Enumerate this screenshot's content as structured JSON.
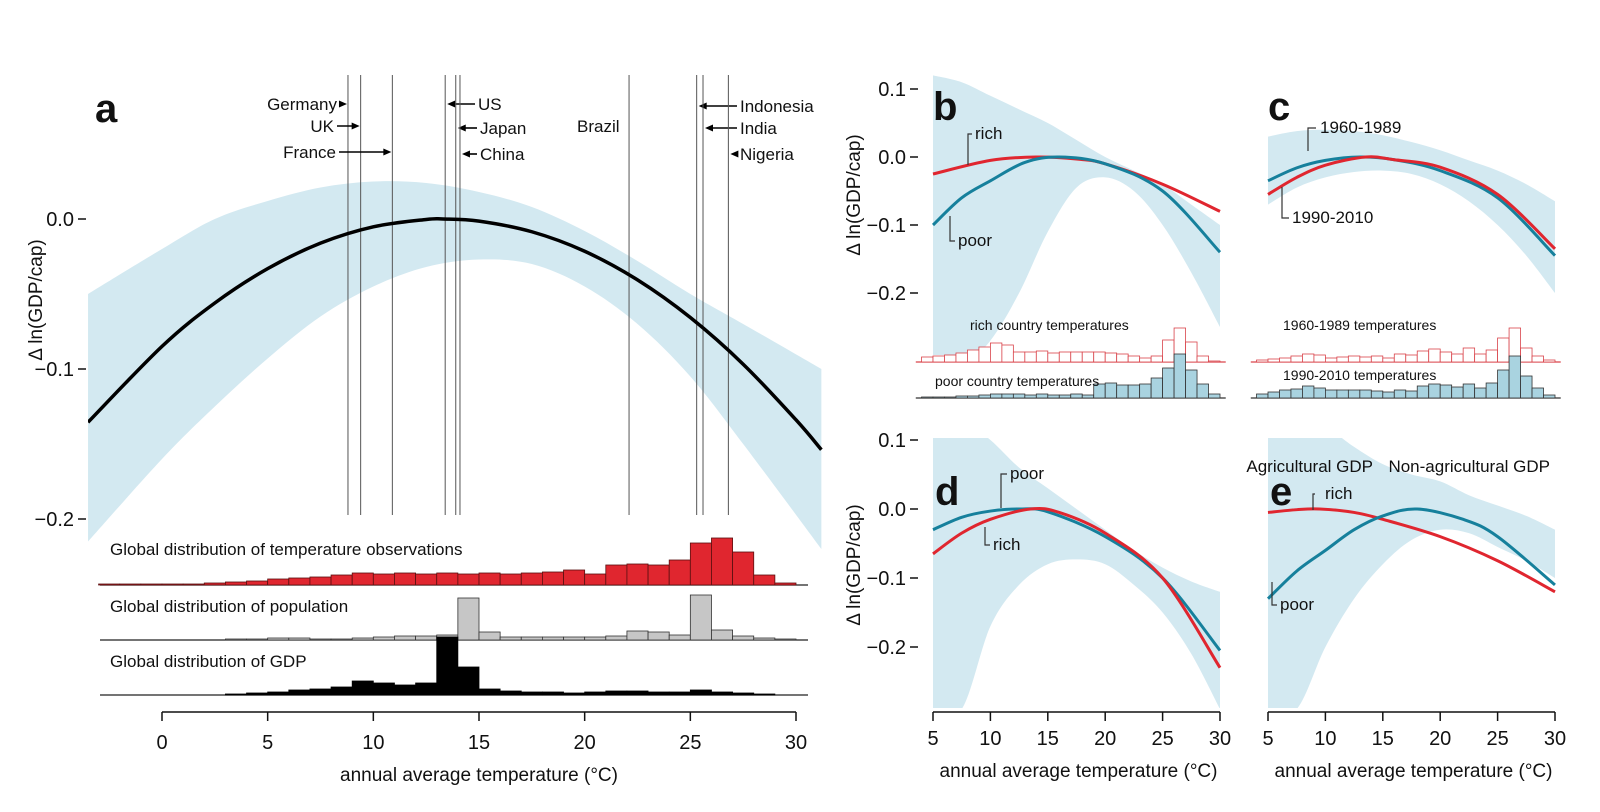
{
  "colors": {
    "band": "#d3e9f1",
    "teal": "#16809c",
    "red": "#e0262f",
    "black": "#000000",
    "gray_hist": "#c6c6c6",
    "teal_hist": "#a9d3e0"
  },
  "chart_data": [
    {
      "panel": "a",
      "type": "line",
      "xlabel": "annual average temperature (°C)",
      "ylabel": "Δ ln(GDP/cap)",
      "xticks": [
        0,
        5,
        10,
        15,
        20,
        25,
        30
      ],
      "xtick_labels": [
        "0",
        "5",
        "10",
        "15",
        "20",
        "25",
        "30"
      ],
      "yticks": [
        0.0,
        -0.1,
        -0.2
      ],
      "ytick_labels": [
        "0.0",
        "−0.1",
        "−0.2"
      ],
      "xlim": [
        -3.5,
        31.2
      ],
      "curve": {
        "x": [
          -3.5,
          0,
          2.5,
          5,
          7.5,
          10,
          12.5,
          13.3,
          15,
          17.5,
          20,
          22.5,
          25,
          27.5,
          30,
          31.2
        ],
        "y": [
          -0.1355,
          -0.0849,
          -0.056,
          -0.0331,
          -0.0161,
          -0.0052,
          -0.0003,
          0,
          -0.0014,
          -0.0085,
          -0.0215,
          -0.0406,
          -0.0657,
          -0.0968,
          -0.1339,
          -0.1538
        ]
      },
      "band": {
        "x": [
          -3.5,
          0,
          2.5,
          5,
          7.5,
          10,
          12.5,
          15,
          17.5,
          20,
          22.5,
          25,
          27.5,
          31.2
        ],
        "upper": [
          -0.05,
          -0.02,
          0.0,
          0.012,
          0.021,
          0.025,
          0.024,
          0.018,
          0.008,
          -0.008,
          -0.028,
          -0.05,
          -0.07,
          -0.1
        ],
        "lower": [
          -0.215,
          -0.16,
          -0.125,
          -0.093,
          -0.065,
          -0.045,
          -0.032,
          -0.027,
          -0.03,
          -0.045,
          -0.07,
          -0.105,
          -0.15,
          -0.22
        ]
      },
      "countries": [
        {
          "name": "Germany",
          "temp": 8.8
        },
        {
          "name": "UK",
          "temp": 9.4
        },
        {
          "name": "France",
          "temp": 10.9
        },
        {
          "name": "US",
          "temp": 13.4
        },
        {
          "name": "Japan",
          "temp": 13.9
        },
        {
          "name": "China",
          "temp": 14.1
        },
        {
          "name": "Brazil",
          "temp": 22.1
        },
        {
          "name": "Indonesia",
          "temp": 25.3
        },
        {
          "name": "India",
          "temp": 25.6
        },
        {
          "name": "Nigeria",
          "temp": 26.8
        }
      ],
      "histograms": [
        {
          "label": "Global distribution of temperature observations",
          "bin_start": -3,
          "bin_width": 1,
          "values": [
            1,
            1,
            1,
            1,
            1,
            2,
            3,
            4,
            6,
            7,
            8,
            10,
            12,
            11,
            12,
            11,
            12,
            11,
            12,
            11,
            12,
            13,
            15,
            11,
            20,
            21,
            20,
            25,
            42,
            47,
            33,
            10,
            2
          ]
        },
        {
          "label": "Global distribution of population",
          "bin_start": -3,
          "bin_width": 1,
          "values": [
            0,
            0,
            0,
            0,
            0,
            0,
            1,
            1,
            2,
            2,
            1,
            1,
            2,
            3,
            4,
            4,
            5,
            42,
            8,
            3,
            3,
            3,
            3,
            3,
            4,
            9,
            8,
            5,
            45,
            10,
            4,
            2,
            1
          ]
        },
        {
          "label": "Global distribution of GDP",
          "bin_start": -3,
          "bin_width": 1,
          "values": [
            0,
            0,
            0,
            0,
            0,
            0,
            1,
            2,
            3,
            5,
            6,
            8,
            14,
            12,
            10,
            12,
            58,
            28,
            6,
            4,
            3,
            3,
            2,
            3,
            4,
            4,
            3,
            3,
            5,
            3,
            2,
            1,
            0
          ]
        }
      ]
    },
    {
      "panel": "b",
      "type": "line",
      "ylabel": "Δ ln(GDP/cap)",
      "yticks": [
        0.1,
        0.0,
        -0.1,
        -0.2
      ],
      "ytick_labels": [
        "0.1",
        "0.0",
        "−0.1",
        "−0.2"
      ],
      "xlim": [
        5,
        30
      ],
      "band": {
        "x": [
          5,
          7.5,
          10,
          12.5,
          15,
          17.5,
          20,
          22.5,
          25,
          27.5,
          30
        ],
        "upper": [
          0.12,
          0.11,
          0.09,
          0.07,
          0.05,
          0.025,
          0.0,
          -0.02,
          -0.04,
          -0.07,
          -0.1
        ],
        "lower": [
          -0.34,
          -0.31,
          -0.27,
          -0.2,
          -0.11,
          -0.045,
          -0.03,
          -0.05,
          -0.1,
          -0.17,
          -0.25
        ]
      },
      "series": [
        {
          "name": "rich",
          "color": "red",
          "x": [
            5,
            10,
            14,
            17.5,
            20,
            25,
            30
          ],
          "y": [
            -0.025,
            -0.005,
            0,
            -0.003,
            -0.01,
            -0.04,
            -0.08
          ]
        },
        {
          "name": "poor",
          "color": "teal",
          "x": [
            5,
            7.5,
            10,
            13,
            16,
            20,
            25,
            30
          ],
          "y": [
            -0.1,
            -0.06,
            -0.035,
            -0.008,
            0,
            -0.01,
            -0.05,
            -0.14
          ]
        }
      ],
      "histograms": [
        {
          "label": "rich country temperatures",
          "bin_start": 4,
          "bin_width": 1,
          "values": [
            5,
            6,
            7,
            9,
            12,
            15,
            19,
            17,
            10,
            10,
            11,
            9,
            10,
            10,
            10,
            10,
            9,
            8,
            6,
            4,
            6,
            22,
            34,
            20,
            6,
            1
          ]
        },
        {
          "label": "poor country temperatures",
          "bin_start": 4,
          "bin_width": 1,
          "values": [
            1,
            1,
            1,
            2,
            2,
            3,
            4,
            4,
            4,
            3,
            4,
            3,
            3,
            4,
            3,
            14,
            15,
            13,
            13,
            14,
            20,
            30,
            44,
            28,
            14,
            4
          ]
        }
      ]
    },
    {
      "panel": "c",
      "type": "line",
      "xlim": [
        5,
        30
      ],
      "band": {
        "x": [
          5,
          7.5,
          10,
          12.5,
          15,
          17.5,
          20,
          22.5,
          25,
          27.5,
          30
        ],
        "upper": [
          0.03,
          0.038,
          0.04,
          0.038,
          0.032,
          0.022,
          0.01,
          -0.005,
          -0.02,
          -0.04,
          -0.065
        ],
        "lower": [
          -0.07,
          -0.045,
          -0.03,
          -0.022,
          -0.02,
          -0.025,
          -0.04,
          -0.065,
          -0.1,
          -0.145,
          -0.2
        ]
      },
      "series": [
        {
          "name": "1960-1989",
          "color": "teal",
          "x": [
            5,
            7.5,
            10,
            13,
            16,
            20,
            25,
            30
          ],
          "y": [
            -0.035,
            -0.016,
            -0.005,
            0,
            -0.004,
            -0.02,
            -0.06,
            -0.145
          ]
        },
        {
          "name": "1990-2010",
          "color": "red",
          "x": [
            5,
            7.5,
            10,
            13.5,
            16,
            20,
            25,
            30
          ],
          "y": [
            -0.055,
            -0.03,
            -0.012,
            0,
            -0.004,
            -0.015,
            -0.055,
            -0.135
          ]
        }
      ],
      "histograms": [
        {
          "label": "1960-1989 temperatures",
          "bin_start": 4,
          "bin_width": 1,
          "values": [
            2,
            3,
            4,
            6,
            8,
            7,
            4,
            5,
            6,
            5,
            6,
            4,
            8,
            7,
            11,
            13,
            10,
            8,
            14,
            8,
            12,
            24,
            34,
            14,
            6,
            2
          ]
        },
        {
          "label": "1990-2010 temperatures",
          "bin_start": 4,
          "bin_width": 1,
          "values": [
            4,
            6,
            8,
            9,
            12,
            10,
            8,
            8,
            8,
            8,
            7,
            6,
            8,
            7,
            12,
            14,
            13,
            11,
            14,
            10,
            15,
            28,
            42,
            22,
            10,
            3
          ]
        }
      ]
    },
    {
      "panel": "d",
      "type": "line",
      "title": "Agricultural GDP",
      "xlabel": "annual average temperature (°C)",
      "ylabel": "Δ ln(GDP/cap)",
      "xticks": [
        5,
        10,
        15,
        20,
        25,
        30
      ],
      "xtick_labels": [
        "5",
        "10",
        "15",
        "20",
        "25",
        "30"
      ],
      "yticks": [
        0.1,
        0.0,
        -0.1,
        -0.2
      ],
      "ytick_labels": [
        "0.1",
        "0.0",
        "−0.1",
        "−0.2"
      ],
      "xlim": [
        5,
        30
      ],
      "band": {
        "x": [
          5,
          7.5,
          10,
          12.5,
          15,
          17.5,
          20,
          22.5,
          25,
          27.5,
          30
        ],
        "upper": [
          0.14,
          0.13,
          0.1,
          0.06,
          0.03,
          0.0,
          -0.03,
          -0.06,
          -0.085,
          -0.105,
          -0.12
        ],
        "lower": [
          -0.29,
          -0.29,
          -0.17,
          -0.11,
          -0.08,
          -0.073,
          -0.08,
          -0.11,
          -0.15,
          -0.21,
          -0.29
        ]
      },
      "series": [
        {
          "name": "poor",
          "color": "teal",
          "x": [
            5,
            7.5,
            10,
            12.5,
            15,
            20,
            25,
            30
          ],
          "y": [
            -0.03,
            -0.012,
            -0.003,
            0,
            -0.004,
            -0.04,
            -0.1,
            -0.205
          ]
        },
        {
          "name": "rich",
          "color": "red",
          "x": [
            5,
            7.5,
            10,
            13.5,
            16,
            20,
            25,
            30
          ],
          "y": [
            -0.065,
            -0.035,
            -0.015,
            0,
            -0.005,
            -0.035,
            -0.1,
            -0.23
          ]
        }
      ]
    },
    {
      "panel": "e",
      "type": "line",
      "title": "Non-agricultural GDP",
      "xlabel": "annual average temperature (°C)",
      "xticks": [
        5,
        10,
        15,
        20,
        25,
        30
      ],
      "xtick_labels": [
        "5",
        "10",
        "15",
        "20",
        "25",
        "30"
      ],
      "xlim": [
        5,
        30
      ],
      "band": {
        "x": [
          5,
          7.5,
          10,
          12.5,
          15,
          17.5,
          20,
          22.5,
          25,
          27.5,
          30
        ],
        "upper": [
          0.14,
          0.14,
          0.12,
          0.09,
          0.065,
          0.05,
          0.04,
          0.02,
          0.005,
          -0.01,
          -0.03
        ],
        "lower": [
          -0.29,
          -0.29,
          -0.2,
          -0.13,
          -0.08,
          -0.045,
          -0.03,
          -0.035,
          -0.055,
          -0.075,
          -0.1
        ]
      },
      "series": [
        {
          "name": "rich",
          "color": "red",
          "x": [
            5,
            7.5,
            9.5,
            12.5,
            15,
            20,
            25,
            30
          ],
          "y": [
            -0.005,
            -0.001,
            0,
            -0.005,
            -0.015,
            -0.04,
            -0.075,
            -0.12
          ]
        },
        {
          "name": "poor",
          "color": "teal",
          "x": [
            5,
            7.5,
            10,
            12.5,
            15,
            18,
            22,
            25,
            30
          ],
          "y": [
            -0.13,
            -0.09,
            -0.06,
            -0.03,
            -0.01,
            0,
            -0.015,
            -0.04,
            -0.11
          ]
        }
      ]
    }
  ]
}
